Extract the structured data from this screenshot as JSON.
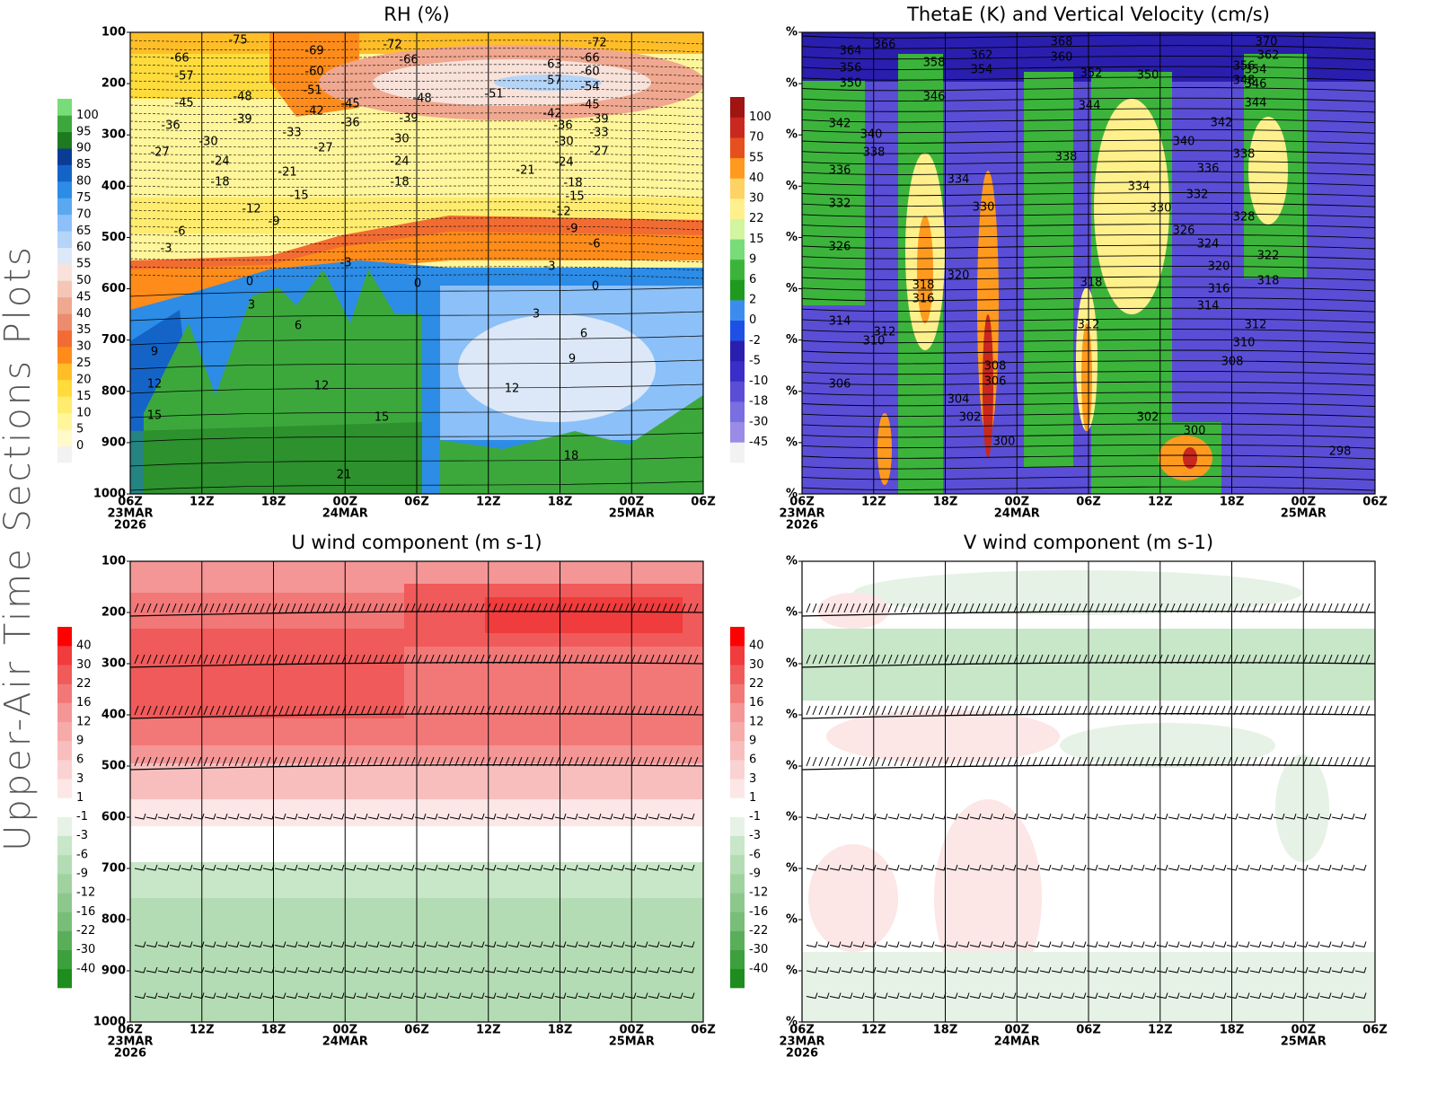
{
  "side_title": "Upper-Air Time Sections Plots",
  "chart_data": [
    {
      "type": "contour",
      "title": "RH (%)",
      "xlim": [
        0,
        48
      ],
      "xticks": [
        {
          "value": 0,
          "label": [
            "06Z",
            "23MAR",
            "2026"
          ]
        },
        {
          "value": 6,
          "label": [
            "12Z"
          ]
        },
        {
          "value": 12,
          "label": [
            "18Z"
          ]
        },
        {
          "value": 18,
          "label": [
            "00Z",
            "24MAR"
          ]
        },
        {
          "value": 24,
          "label": [
            "06Z"
          ]
        },
        {
          "value": 30,
          "label": [
            "12Z"
          ]
        },
        {
          "value": 36,
          "label": [
            "18Z"
          ]
        },
        {
          "value": 42,
          "label": [
            "00Z",
            "25MAR"
          ]
        },
        {
          "value": 48,
          "label": [
            "06Z"
          ]
        }
      ],
      "ylim": [
        1000,
        100
      ],
      "yticks": [
        100,
        200,
        300,
        400,
        500,
        600,
        700,
        800,
        900,
        1000
      ],
      "colorbar": {
        "levels": [
          0,
          5,
          10,
          15,
          20,
          25,
          30,
          35,
          40,
          45,
          50,
          55,
          60,
          65,
          70,
          75,
          80,
          85,
          90,
          95,
          100
        ],
        "colors": [
          "#f2f2f2",
          "#fffac8",
          "#fff59a",
          "#ffec6e",
          "#ffdc3c",
          "#ffbe28",
          "#ff8c1a",
          "#f26c32",
          "#ec8c6e",
          "#f0a890",
          "#f5c6b6",
          "#f8e2da",
          "#dce8f8",
          "#b4d4f8",
          "#8cc0f8",
          "#5aa8f0",
          "#2c8ce6",
          "#1464c8",
          "#0a3c96",
          "#1e7a1e",
          "#3ca83c",
          "#78dc78"
        ]
      },
      "contour_labels": [
        "-75",
        "-66",
        "-57",
        "-45",
        "-36",
        "-27",
        "-30",
        "-24",
        "-18",
        "-48",
        "-39",
        "-33",
        "-21",
        "-15",
        "-12",
        "-9",
        "-6",
        "-3",
        "-69",
        "-60",
        "-51",
        "-42",
        "-36",
        "-27",
        "-45",
        "-72",
        "-66",
        "-48",
        "-39",
        "-30",
        "-24",
        "-18",
        "-51",
        "-21",
        "-63",
        "-57",
        "-42",
        "-36",
        "-30",
        "-24",
        "-18",
        "-15",
        "-12",
        "-9",
        "-6",
        "-3",
        "-66",
        "-60",
        "-54",
        "-45",
        "-39",
        "-33",
        "-27",
        "-72",
        "-3",
        "0",
        "0",
        "0",
        "3",
        "3",
        "6",
        "6",
        "9",
        "9",
        "12",
        "12",
        "12",
        "15",
        "15",
        "18",
        "21"
      ]
    },
    {
      "type": "contour",
      "title": "ThetaE (K) and Vertical Velocity (cm/s)",
      "xlim": [
        0,
        48
      ],
      "xticks": [
        {
          "value": 0,
          "label": [
            "06Z",
            "23MAR",
            "2026"
          ]
        },
        {
          "value": 6,
          "label": [
            "12Z"
          ]
        },
        {
          "value": 12,
          "label": [
            "18Z"
          ]
        },
        {
          "value": 18,
          "label": [
            "00Z",
            "24MAR"
          ]
        },
        {
          "value": 24,
          "label": [
            "06Z"
          ]
        },
        {
          "value": 30,
          "label": [
            "12Z"
          ]
        },
        {
          "value": 36,
          "label": [
            "18Z"
          ]
        },
        {
          "value": 42,
          "label": [
            "00Z",
            "25MAR"
          ]
        },
        {
          "value": 48,
          "label": [
            "06Z"
          ]
        }
      ],
      "ylim": [
        1000,
        100
      ],
      "yticks": [
        {
          "value": 100,
          "label": "%"
        },
        {
          "value": 200,
          "label": "%"
        },
        {
          "value": 300,
          "label": "%"
        },
        {
          "value": 400,
          "label": "%"
        },
        {
          "value": 500,
          "label": "%"
        },
        {
          "value": 600,
          "label": "%"
        },
        {
          "value": 700,
          "label": "%"
        },
        {
          "value": 800,
          "label": "%"
        },
        {
          "value": 900,
          "label": "%"
        },
        {
          "value": 1000,
          "label": "%"
        }
      ],
      "colorbar": {
        "levels": [
          -45,
          -30,
          -18,
          -10,
          -5,
          -2,
          0,
          2,
          6,
          9,
          15,
          22,
          30,
          40,
          55,
          70,
          100
        ],
        "colors": [
          "#f2f2f2",
          "#9a8ce6",
          "#7a6ee0",
          "#5a4ed6",
          "#3a2ec8",
          "#2a1eae",
          "#1e50e6",
          "#3c8cf0",
          "#1e9a1e",
          "#3cb43c",
          "#78dc78",
          "#d2f5a0",
          "#fff08c",
          "#ffd264",
          "#ff9a1e",
          "#e6501e",
          "#c8281e",
          "#a01414"
        ]
      },
      "contour_labels": [
        "364",
        "366",
        "368",
        "370",
        "360",
        "362",
        "354",
        "358",
        "356",
        "350",
        "352",
        "350",
        "356",
        "354",
        "362",
        "348",
        "346",
        "346",
        "344",
        "344",
        "342",
        "340",
        "338",
        "342",
        "340",
        "338",
        "338",
        "336",
        "334",
        "336",
        "334",
        "332",
        "330",
        "330",
        "328",
        "332",
        "326",
        "326",
        "324",
        "322",
        "320",
        "320",
        "318",
        "318",
        "318",
        "316",
        "316",
        "314",
        "314",
        "312",
        "312",
        "312",
        "310",
        "310",
        "308",
        "308",
        "306",
        "306",
        "304",
        "302",
        "302",
        "300",
        "300",
        "298"
      ]
    },
    {
      "type": "contour",
      "title": "U wind component (m s-1)",
      "xlim": [
        0,
        48
      ],
      "xticks": [
        {
          "value": 0,
          "label": [
            "06Z",
            "23MAR",
            "2026"
          ]
        },
        {
          "value": 6,
          "label": [
            "12Z"
          ]
        },
        {
          "value": 12,
          "label": [
            "18Z"
          ]
        },
        {
          "value": 18,
          "label": [
            "00Z",
            "24MAR"
          ]
        },
        {
          "value": 24,
          "label": [
            "06Z"
          ]
        },
        {
          "value": 30,
          "label": [
            "12Z"
          ]
        },
        {
          "value": 36,
          "label": [
            "18Z"
          ]
        },
        {
          "value": 42,
          "label": [
            "00Z",
            "25MAR"
          ]
        },
        {
          "value": 48,
          "label": [
            "06Z"
          ]
        }
      ],
      "ylim": [
        1000,
        100
      ],
      "yticks": [
        100,
        200,
        300,
        400,
        500,
        600,
        700,
        800,
        900,
        1000
      ],
      "colorbar": {
        "levels": [
          -40,
          -30,
          -22,
          -16,
          -12,
          -9,
          -6,
          -3,
          -1,
          1,
          3,
          6,
          9,
          12,
          16,
          22,
          30,
          40
        ],
        "colors": [
          "#1e8c1e",
          "#3ca03c",
          "#5aae5a",
          "#78be78",
          "#8cc88c",
          "#a0d2a0",
          "#b4dcb4",
          "#c8e6c8",
          "#e6f2e6",
          "#ffffff",
          "#fce6e6",
          "#fad2d2",
          "#f8bebe",
          "#f6aaaa",
          "#f49696",
          "#f27878",
          "#f05a5a",
          "#f03c3c",
          "#ff0000"
        ]
      }
    },
    {
      "type": "contour",
      "title": "V wind component (m s-1)",
      "xlim": [
        0,
        48
      ],
      "xticks": [
        {
          "value": 0,
          "label": [
            "06Z",
            "23MAR",
            "2026"
          ]
        },
        {
          "value": 6,
          "label": [
            "12Z"
          ]
        },
        {
          "value": 12,
          "label": [
            "18Z"
          ]
        },
        {
          "value": 18,
          "label": [
            "00Z",
            "24MAR"
          ]
        },
        {
          "value": 24,
          "label": [
            "06Z"
          ]
        },
        {
          "value": 30,
          "label": [
            "12Z"
          ]
        },
        {
          "value": 36,
          "label": [
            "18Z"
          ]
        },
        {
          "value": 42,
          "label": [
            "00Z",
            "25MAR"
          ]
        },
        {
          "value": 48,
          "label": [
            "06Z"
          ]
        }
      ],
      "ylim": [
        1000,
        100
      ],
      "yticks": [
        {
          "value": 100,
          "label": "%"
        },
        {
          "value": 200,
          "label": "%"
        },
        {
          "value": 300,
          "label": "%"
        },
        {
          "value": 400,
          "label": "%"
        },
        {
          "value": 500,
          "label": "%"
        },
        {
          "value": 600,
          "label": "%"
        },
        {
          "value": 700,
          "label": "%"
        },
        {
          "value": 800,
          "label": "%"
        },
        {
          "value": 900,
          "label": "%"
        },
        {
          "value": 1000,
          "label": "%"
        }
      ],
      "colorbar": {
        "levels": [
          -40,
          -30,
          -22,
          -16,
          -12,
          -9,
          -6,
          -3,
          -1,
          1,
          3,
          6,
          9,
          12,
          16,
          22,
          30,
          40
        ],
        "colors": [
          "#1e8c1e",
          "#3ca03c",
          "#5aae5a",
          "#78be78",
          "#8cc88c",
          "#a0d2a0",
          "#b4dcb4",
          "#c8e6c8",
          "#e6f2e6",
          "#ffffff",
          "#fce6e6",
          "#fad2d2",
          "#f8bebe",
          "#f6aaaa",
          "#f49696",
          "#f27878",
          "#f05a5a",
          "#f03c3c",
          "#ff0000"
        ]
      }
    }
  ]
}
